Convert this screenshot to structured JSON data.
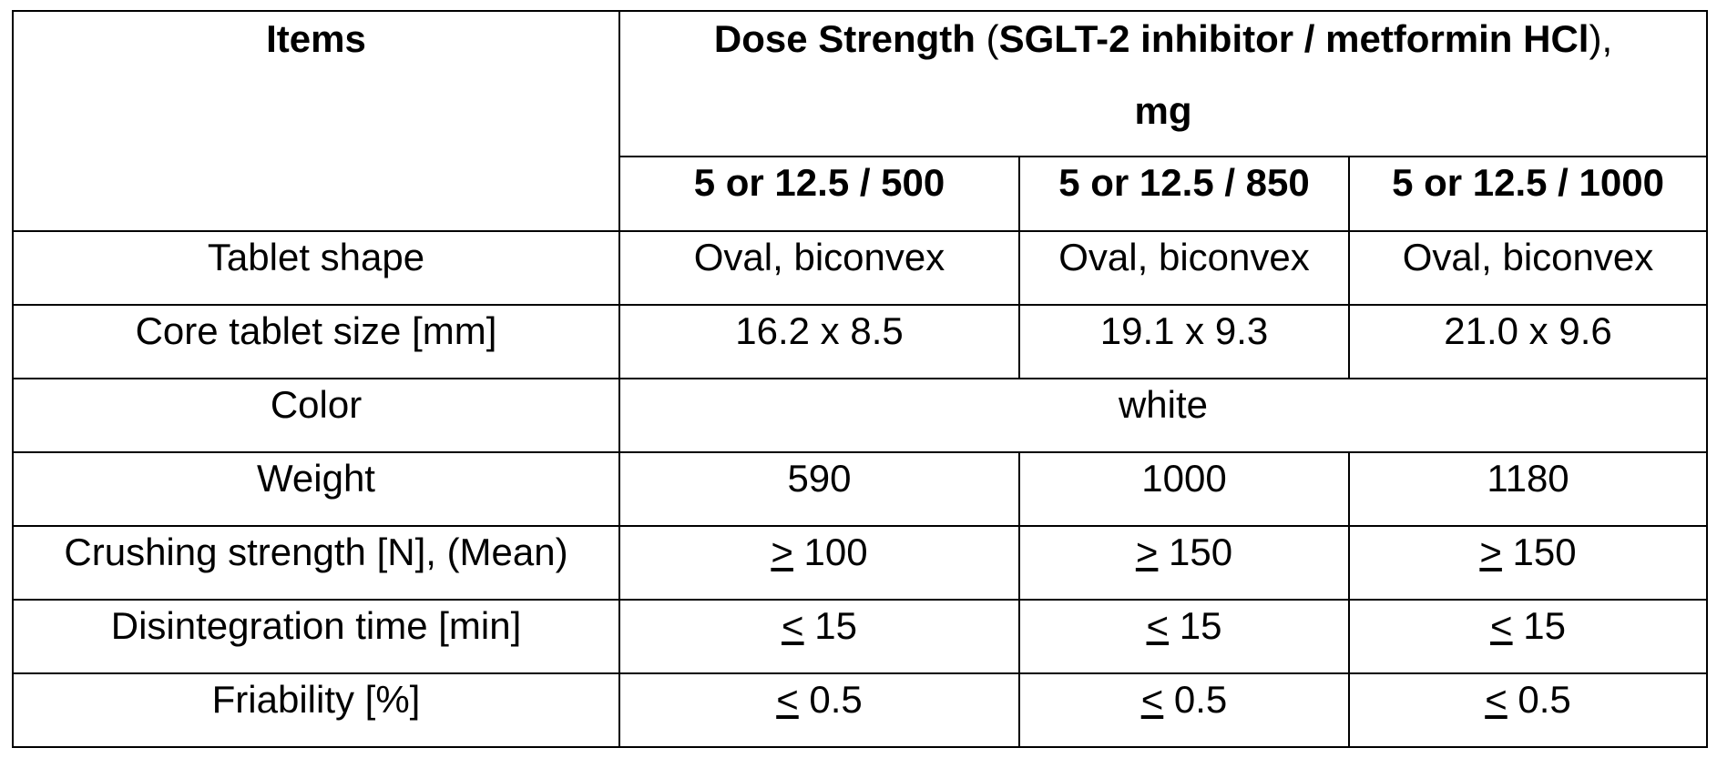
{
  "table": {
    "header": {
      "items_label": "Items",
      "dose_title_bold_1": "Dose Strength",
      "dose_title_paren_open": " (",
      "dose_title_bold_2": "SGLT-2 inhibitor / metformin HCl",
      "dose_title_paren_close": "),",
      "dose_title_unit": "mg",
      "strengths": [
        "5 or 12.5 / 500",
        "5 or 12.5 / 850",
        "5 or 12.5 / 1000"
      ]
    },
    "rows": [
      {
        "label": "Tablet shape",
        "values": [
          "Oval, biconvex",
          "Oval, biconvex",
          "Oval, biconvex"
        ]
      },
      {
        "label": "Core tablet size [mm]",
        "values": [
          "16.2 x 8.5",
          "19.1 x 9.3",
          "21.0 x 9.6"
        ]
      },
      {
        "label": "Color",
        "merged_value": "white"
      },
      {
        "label": "Weight",
        "values": [
          "590",
          "1000",
          "1180"
        ]
      },
      {
        "label": "Crushing strength [N], (Mean)",
        "values": [
          {
            "symbol": ">",
            "number": " 100"
          },
          {
            "symbol": ">",
            "number": " 150"
          },
          {
            "symbol": ">",
            "number": " 150"
          }
        ]
      },
      {
        "label": "Disintegration time [min]",
        "values": [
          {
            "symbol": "<",
            "number": " 15"
          },
          {
            "symbol": "<",
            "number": " 15"
          },
          {
            "symbol": "<",
            "number": " 15"
          }
        ]
      },
      {
        "label": "Friability [%]",
        "values": [
          {
            "symbol": "<",
            "number": " 0.5"
          },
          {
            "symbol": "<",
            "number": " 0.5"
          },
          {
            "symbol": "<",
            "number": " 0.5"
          }
        ]
      }
    ]
  }
}
